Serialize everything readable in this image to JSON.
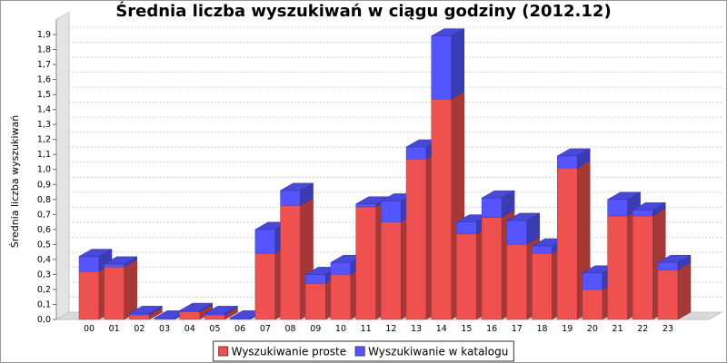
{
  "chart_data": {
    "type": "bar",
    "stacked": true,
    "style": "3d",
    "title": "Średnia liczba wyszukiwań w ciągu godziny (2012.12)",
    "xlabel": "",
    "ylabel": "Średnia liczba wyszukiwań",
    "ylim": [
      0,
      2.0
    ],
    "yticks": [
      "0,0",
      "0,1",
      "0,2",
      "0,3",
      "0,4",
      "0,5",
      "0,6",
      "0,7",
      "0,8",
      "0,9",
      "1,0",
      "1,1",
      "1,2",
      "1,3",
      "1,4",
      "1,5",
      "1,6",
      "1,7",
      "1,8",
      "1,9"
    ],
    "categories": [
      "00",
      "01",
      "02",
      "03",
      "04",
      "05",
      "06",
      "07",
      "08",
      "09",
      "10",
      "11",
      "12",
      "13",
      "14",
      "15",
      "16",
      "17",
      "18",
      "19",
      "20",
      "21",
      "22",
      "23"
    ],
    "series": [
      {
        "name": "Wyszukiwanie proste",
        "color": "#ef5050",
        "values": [
          0.32,
          0.35,
          0.03,
          0.0,
          0.05,
          0.03,
          0.0,
          0.44,
          0.76,
          0.24,
          0.3,
          0.75,
          0.65,
          1.07,
          1.47,
          0.57,
          0.68,
          0.5,
          0.44,
          1.01,
          0.2,
          0.69,
          0.69,
          0.33
        ]
      },
      {
        "name": "Wyszukiwanie w katalogu",
        "color": "#5555ff",
        "values": [
          0.1,
          0.02,
          0.01,
          0.01,
          0.01,
          0.01,
          0.01,
          0.16,
          0.1,
          0.06,
          0.08,
          0.02,
          0.14,
          0.08,
          0.42,
          0.08,
          0.13,
          0.16,
          0.05,
          0.08,
          0.11,
          0.11,
          0.04,
          0.05
        ]
      }
    ],
    "grid": true,
    "legend_position": "bottom"
  }
}
